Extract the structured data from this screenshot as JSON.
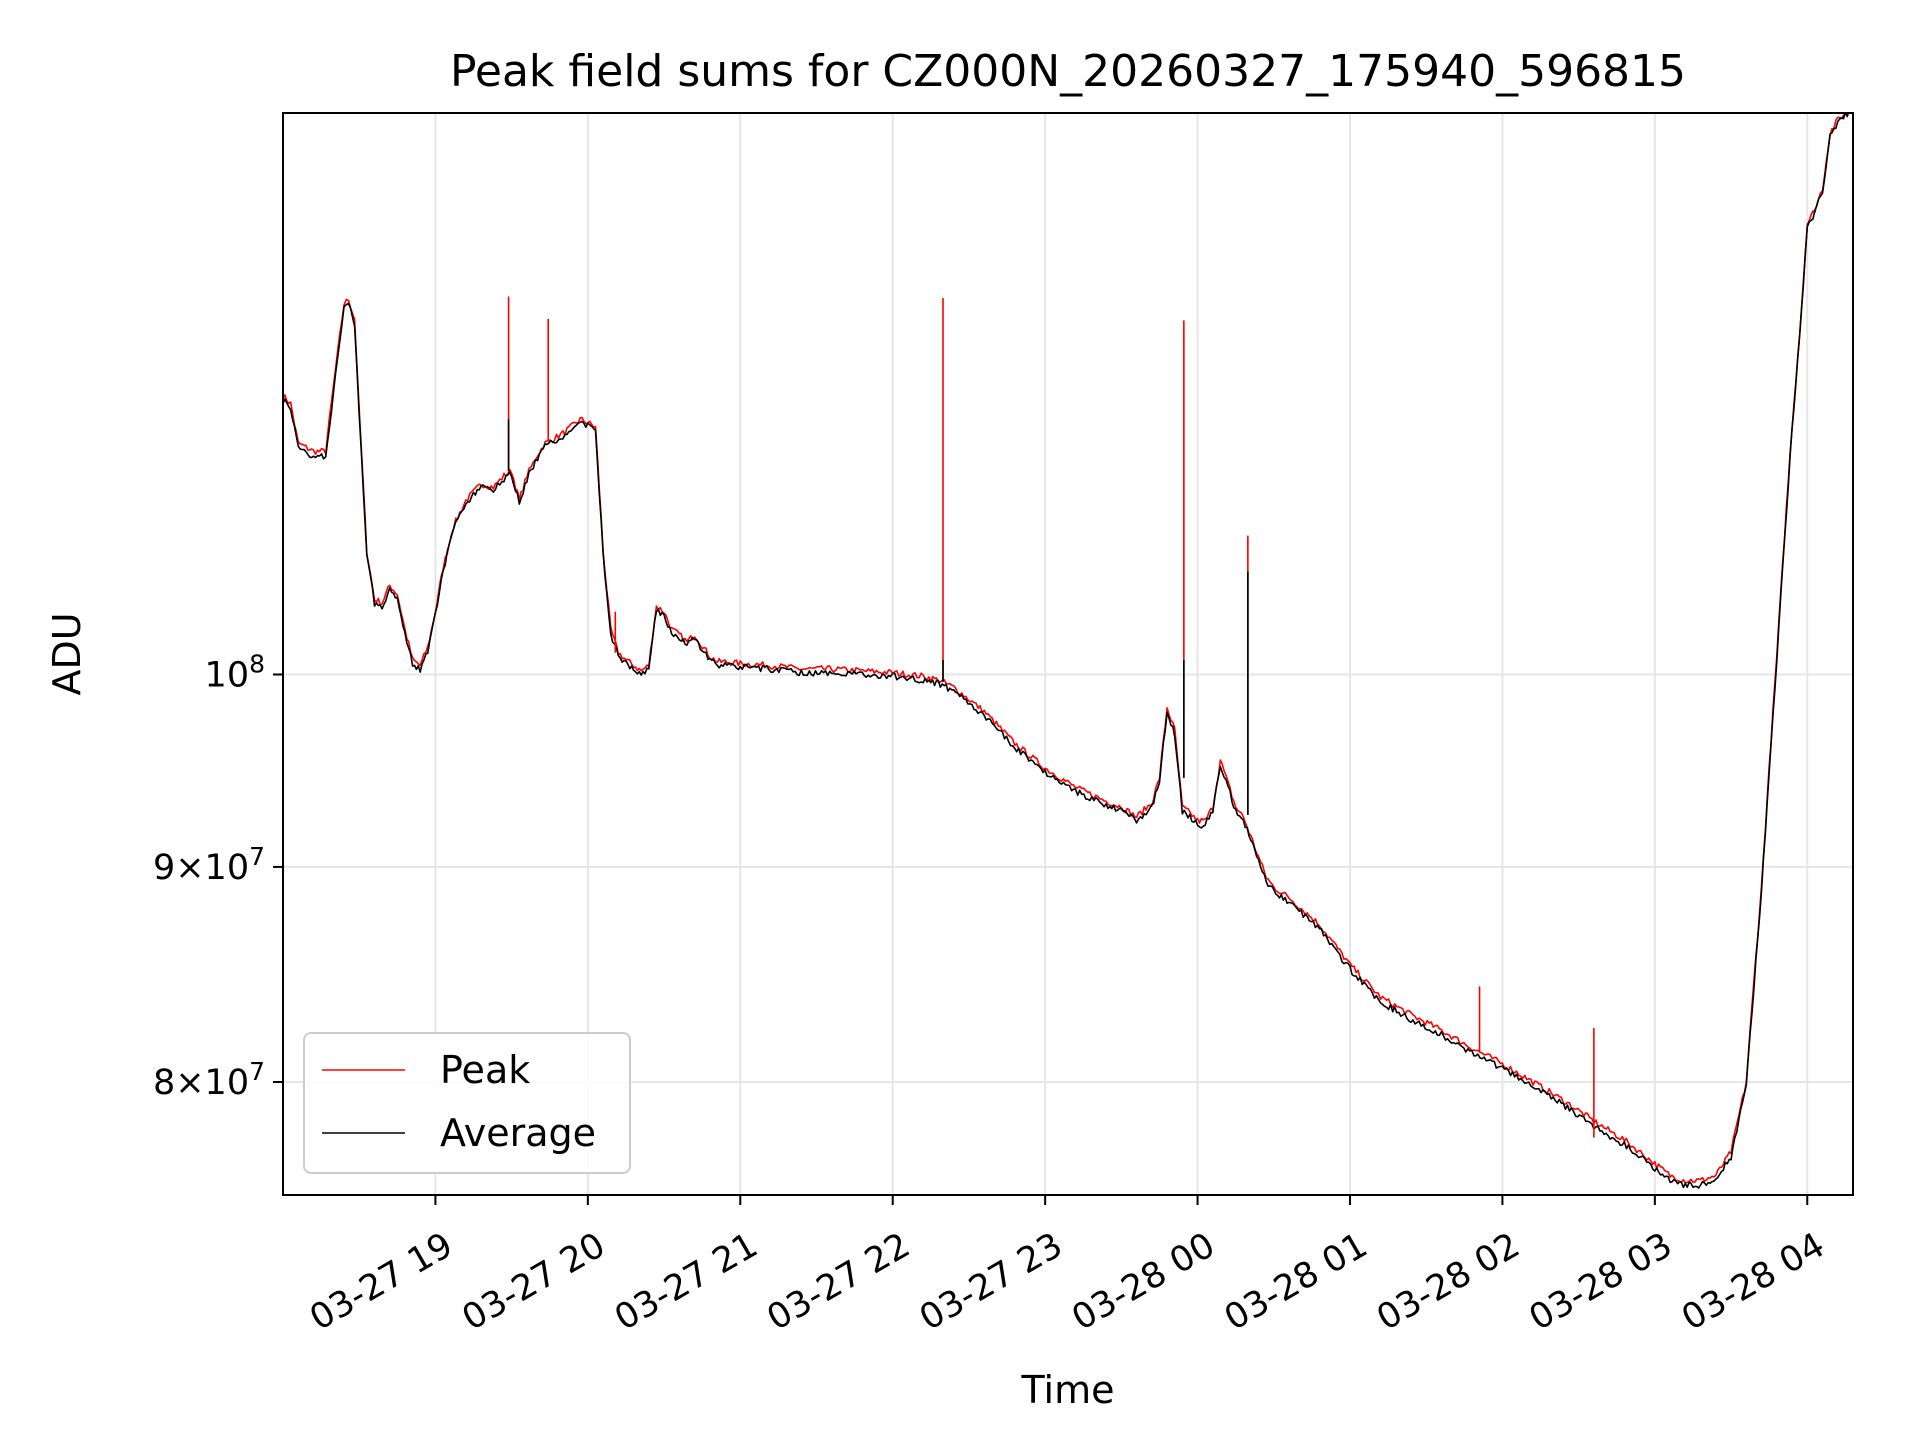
{
  "chart_data": {
    "type": "line",
    "title": "Peak field sums for CZ000N_20260327_175940_596815",
    "xlabel": "Time",
    "ylabel": "ADU",
    "y_scale": "log",
    "xlim_hours": [
      18.0,
      28.3
    ],
    "ylim": [
      75200000,
      136000000
    ],
    "x_ticks": [
      {
        "label": "03-27 19",
        "value": 19
      },
      {
        "label": "03-27 20",
        "value": 20
      },
      {
        "label": "03-27 21",
        "value": 21
      },
      {
        "label": "03-27 22",
        "value": 22
      },
      {
        "label": "03-27 23",
        "value": 23
      },
      {
        "label": "03-28 00",
        "value": 24
      },
      {
        "label": "03-28 01",
        "value": 25
      },
      {
        "label": "03-28 02",
        "value": 26
      },
      {
        "label": "03-28 03",
        "value": 27
      },
      {
        "label": "03-28 04",
        "value": 28
      }
    ],
    "y_ticks": [
      {
        "base": "10",
        "exp": "8",
        "mant": "",
        "value": 100000000
      },
      {
        "base": "10",
        "exp": "7",
        "mant": "9",
        "value": 90000000
      },
      {
        "base": "10",
        "exp": "7",
        "mant": "8",
        "value": 80000000
      }
    ],
    "grid": true,
    "legend_position": "lower-left",
    "series": [
      {
        "name": "Peak",
        "color": "#ff0000",
        "x": [
          18.0,
          18.05,
          18.1,
          18.2,
          18.28,
          18.33,
          18.4,
          18.43,
          18.47,
          18.5,
          18.55,
          18.6,
          18.65,
          18.7,
          18.75,
          18.8,
          18.85,
          18.9,
          18.95,
          19.0,
          19.05,
          19.12,
          19.2,
          19.3,
          19.38,
          19.45,
          19.5,
          19.55,
          19.6,
          19.67,
          19.72,
          19.78,
          19.85,
          19.95,
          20.0,
          20.05,
          20.1,
          20.15,
          20.2,
          20.25,
          20.3,
          20.35,
          20.4,
          20.45,
          20.5,
          20.55,
          20.6,
          20.65,
          20.7,
          20.75,
          20.8,
          20.85,
          20.9,
          21.0,
          21.2,
          21.4,
          21.6,
          21.8,
          22.0,
          22.2,
          22.3,
          22.4,
          22.6,
          22.8,
          23.0,
          23.2,
          23.4,
          23.5,
          23.6,
          23.7,
          23.75,
          23.8,
          23.85,
          23.9,
          23.95,
          24.0,
          24.05,
          24.1,
          24.15,
          24.2,
          24.25,
          24.3,
          24.35,
          24.4,
          24.45,
          24.5,
          24.6,
          24.8,
          25.0,
          25.2,
          25.4,
          25.6,
          25.8,
          26.0,
          26.2,
          26.4,
          26.6,
          26.8,
          27.0,
          27.1,
          27.2,
          27.3,
          27.4,
          27.5,
          27.6,
          27.7,
          27.8,
          27.9,
          27.95,
          28.0,
          28.05,
          28.1,
          28.15,
          28.2,
          28.25,
          28.3
        ],
        "y": [
          116500000,
          116000000,
          113500000,
          113000000,
          113000000,
          117000000,
          122500000,
          122800000,
          121500000,
          115500000,
          107000000,
          104200000,
          104000000,
          105000000,
          104500000,
          102500000,
          100800000,
          100500000,
          101500000,
          103500000,
          106000000,
          108500000,
          110000000,
          111000000,
          110800000,
          111500000,
          111800000,
          110000000,
          111500000,
          112800000,
          113500000,
          113800000,
          114200000,
          115000000,
          114800000,
          114500000,
          107000000,
          102500000,
          101200000,
          100800000,
          100500000,
          100200000,
          100500000,
          103800000,
          103500000,
          102500000,
          102200000,
          101800000,
          102200000,
          101600000,
          101000000,
          100700000,
          100700000,
          100600000,
          100500000,
          100300000,
          100300000,
          100200000,
          100100000,
          99900000,
          99700000,
          99300000,
          98000000,
          96300000,
          95000000,
          94000000,
          93300000,
          93000000,
          92500000,
          93200000,
          94500000,
          98200000,
          97000000,
          93000000,
          92700000,
          92300000,
          92300000,
          93000000,
          95400000,
          94200000,
          93000000,
          92500000,
          91500000,
          90500000,
          89500000,
          89000000,
          88500000,
          87200000,
          85300000,
          83800000,
          83000000,
          82300000,
          81500000,
          80800000,
          80000000,
          79200000,
          78300000,
          77500000,
          76500000,
          76000000,
          75800000,
          75800000,
          76000000,
          77000000,
          80000000,
          89000000,
          101000000,
          114500000,
          120500000,
          128000000,
          129000000,
          130500000,
          134500000,
          135500000,
          136000000,
          136500000
        ]
      },
      {
        "name": "Average",
        "color": "#000000",
        "x": [
          18.0,
          18.05,
          18.1,
          18.2,
          18.28,
          18.33,
          18.4,
          18.43,
          18.47,
          18.5,
          18.55,
          18.6,
          18.65,
          18.7,
          18.75,
          18.8,
          18.85,
          18.9,
          18.95,
          19.0,
          19.05,
          19.12,
          19.2,
          19.3,
          19.38,
          19.45,
          19.5,
          19.55,
          19.6,
          19.67,
          19.72,
          19.78,
          19.85,
          19.95,
          20.0,
          20.05,
          20.1,
          20.15,
          20.2,
          20.25,
          20.3,
          20.35,
          20.4,
          20.45,
          20.5,
          20.55,
          20.6,
          20.65,
          20.7,
          20.75,
          20.8,
          20.85,
          20.9,
          21.0,
          21.2,
          21.4,
          21.6,
          21.8,
          22.0,
          22.2,
          22.3,
          22.4,
          22.6,
          22.8,
          23.0,
          23.2,
          23.4,
          23.5,
          23.6,
          23.7,
          23.75,
          23.8,
          23.85,
          23.9,
          23.95,
          24.0,
          24.05,
          24.1,
          24.15,
          24.2,
          24.25,
          24.3,
          24.35,
          24.4,
          24.45,
          24.5,
          24.6,
          24.8,
          25.0,
          25.2,
          25.4,
          25.6,
          25.8,
          26.0,
          26.2,
          26.4,
          26.6,
          26.8,
          27.0,
          27.1,
          27.2,
          27.3,
          27.4,
          27.5,
          27.6,
          27.7,
          27.8,
          27.9,
          27.95,
          28.0,
          28.05,
          28.1,
          28.15,
          28.2,
          28.25,
          28.3
        ],
        "y": [
          116200000,
          115700000,
          113200000,
          112700000,
          112700000,
          116600000,
          122100000,
          122400000,
          121200000,
          115200000,
          106800000,
          104000000,
          103800000,
          104800000,
          104300000,
          102300000,
          100600000,
          100300000,
          101300000,
          103300000,
          105800000,
          108300000,
          109800000,
          110800000,
          110600000,
          111300000,
          111600000,
          109800000,
          111300000,
          112600000,
          113300000,
          113600000,
          114000000,
          114800000,
          114600000,
          114300000,
          106800000,
          102300000,
          101000000,
          100600000,
          100300000,
          100000000,
          100300000,
          103600000,
          103300000,
          102300000,
          102000000,
          101600000,
          102000000,
          101400000,
          100800000,
          100500000,
          100500000,
          100400000,
          100300000,
          100100000,
          100100000,
          100000000,
          99900000,
          99700000,
          99500000,
          99100000,
          97800000,
          96100000,
          94800000,
          93800000,
          93100000,
          92800000,
          92300000,
          93000000,
          94300000,
          98000000,
          96800000,
          92800000,
          92500000,
          92100000,
          92100000,
          92800000,
          95200000,
          94000000,
          92800000,
          92300000,
          91300000,
          90300000,
          89300000,
          88800000,
          88300000,
          87000000,
          85100000,
          83600000,
          82800000,
          82100000,
          81300000,
          80600000,
          79800000,
          79000000,
          78100000,
          77300000,
          76300000,
          75800000,
          75600000,
          75600000,
          75800000,
          76800000,
          79800000,
          88800000,
          100800000,
          114300000,
          120300000,
          127800000,
          128800000,
          130300000,
          134300000,
          135300000,
          135800000,
          136300000
        ]
      }
    ],
    "spikes": [
      {
        "x": 19.48,
        "base": 111800000,
        "peak": 123000000,
        "avg": 115000000
      },
      {
        "x": 19.74,
        "base": 113600000,
        "peak": 121500000,
        "avg": 113600000
      },
      {
        "x": 20.18,
        "base": 101200000,
        "peak": 103500000,
        "avg": 101200000
      },
      {
        "x": 22.33,
        "base": 99600000,
        "peak": 122900000,
        "avg": 100800000
      },
      {
        "x": 23.91,
        "base": 94500000,
        "peak": 121400000,
        "avg": 100800000
      },
      {
        "x": 24.33,
        "base": 92600000,
        "peak": 107900000,
        "avg": 105800000
      },
      {
        "x": 25.85,
        "base": 81300000,
        "peak": 84300000,
        "avg": 81300000
      },
      {
        "x": 26.6,
        "base": 77600000,
        "peak": 82400000,
        "avg": 77600000
      }
    ]
  }
}
